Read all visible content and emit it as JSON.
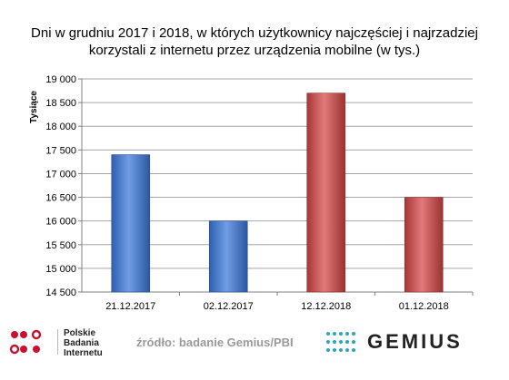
{
  "chart_data": {
    "type": "bar",
    "title": "Dni w grudniu 2017 i 2018, w których użytkownicy najczęściej i najrzadziej korzystali z internetu przez urządzenia mobilne (w tys.)",
    "title_lines": [
      "Dni w grudniu 2017 i 2018, w których użytkownicy najczęściej i najrzadziej",
      "korzystali z internetu przez urządzenia mobilne (w tys.)"
    ],
    "ylabel": "Tysiące",
    "xlabel": "",
    "categories": [
      "21.12.2017",
      "02.12.2017",
      "12.12.2018",
      "01.12.2018"
    ],
    "values": [
      17400,
      16000,
      18700,
      16500
    ],
    "bar_colors": [
      "#4a7fd4",
      "#4a7fd4",
      "#cc5454",
      "#cc5454"
    ],
    "ylim": [
      14500,
      19000
    ],
    "yticks": [
      14500,
      15000,
      15500,
      16000,
      16500,
      17000,
      17500,
      18000,
      18500,
      19000
    ],
    "ytick_labels": [
      "14 500",
      "15 000",
      "15 500",
      "16 000",
      "16 500",
      "17 000",
      "17 500",
      "18 000",
      "18 500",
      "19 000"
    ],
    "grid": true,
    "legend": "none"
  },
  "footer": {
    "logo_line1": "Polskie",
    "logo_line2": "Badania",
    "logo_line3": "Internetu",
    "source": "źródło: badanie Gemius/PBI",
    "brand": "GEMIUS"
  },
  "colors": {
    "blue_bar": "#4a7fd4",
    "red_bar": "#cc5454",
    "pbi_red": "#c8102e",
    "gemius_teal": "#2aa7b8"
  }
}
